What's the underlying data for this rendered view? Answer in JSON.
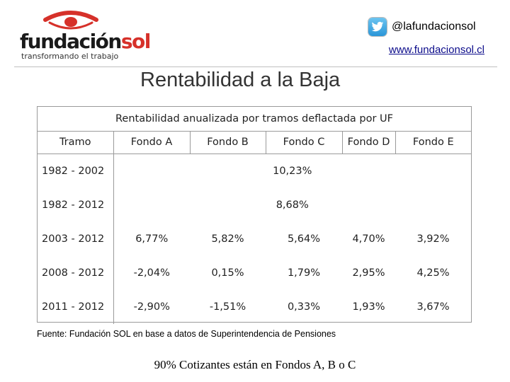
{
  "header": {
    "logo": {
      "word_main": "fundación",
      "word_accent": "sol",
      "tagline": "transformando el trabajo",
      "accent_color": "#d6312a"
    },
    "twitter": {
      "icon": "twitter-icon",
      "handle": "@lafundacionsol"
    },
    "website": "www.fundacionsol.cl"
  },
  "slide": {
    "title": "Rentabilidad a la Baja",
    "source": "Fuente: Fundación SOL en base a datos de Superintendencia de Pensiones",
    "footnote": "90% Cotizantes están en Fondos A, B o C"
  },
  "table": {
    "caption": "Rentabilidad anualizada por tramos deflactada por UF",
    "headers": [
      "Tramo",
      "Fondo A",
      "Fondo B",
      "Fondo C",
      "Fondo D",
      "Fondo E"
    ],
    "rows": [
      {
        "tramo": "1982 - 2002",
        "merged": "10,23%"
      },
      {
        "tramo": "1982 - 2012",
        "merged": "8,68%"
      },
      {
        "tramo": "2003 - 2012",
        "values": [
          "6,77%",
          "5,82%",
          "5,64%",
          "4,70%",
          "3,92%"
        ]
      },
      {
        "tramo": "2008 - 2012",
        "values": [
          "-2,04%",
          "0,15%",
          "1,79%",
          "2,95%",
          "4,25%"
        ]
      },
      {
        "tramo": "2011 - 2012",
        "values": [
          "-2,90%",
          "-1,51%",
          "0,33%",
          "1,93%",
          "3,67%"
        ]
      }
    ]
  }
}
